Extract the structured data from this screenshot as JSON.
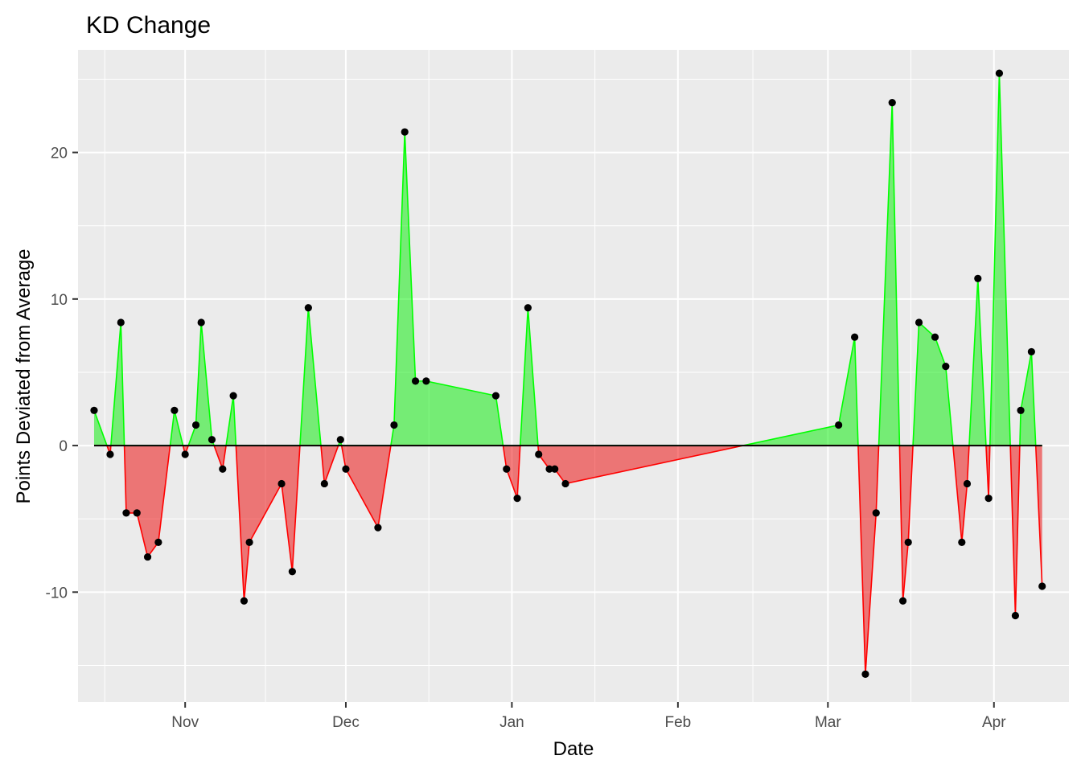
{
  "chart_data": {
    "type": "area",
    "title": "KD Change",
    "xlabel": "Date",
    "ylabel": "Points Deviated from Average",
    "x_axis": {
      "type": "date",
      "range": [
        "2021-10-12",
        "2022-04-15"
      ],
      "tick_labels": [
        {
          "date": "2021-11-01",
          "label": "Nov"
        },
        {
          "date": "2021-12-01",
          "label": "Dec"
        },
        {
          "date": "2022-01-01",
          "label": "Jan"
        },
        {
          "date": "2022-02-01",
          "label": "Feb"
        },
        {
          "date": "2022-03-01",
          "label": "Mar"
        },
        {
          "date": "2022-04-01",
          "label": "Apr"
        }
      ]
    },
    "y_axis": {
      "range": [
        -17.5,
        27.0
      ],
      "ticks": [
        -10,
        0,
        10,
        20
      ],
      "minor_ticks": [
        -15,
        -5,
        5,
        15,
        25
      ]
    },
    "grid": true,
    "legend": "none",
    "colors": {
      "positive_fill": "#00ee00",
      "positive_line": "#00ff00",
      "negative_fill": "#ee0000",
      "negative_line": "#ff0000",
      "points": "#000000",
      "baseline": "#000000",
      "panel": "#ebebeb",
      "grid": "#ffffff"
    },
    "points": [
      {
        "date": "2021-10-15",
        "y": 2.4
      },
      {
        "date": "2021-10-18",
        "y": -0.6
      },
      {
        "date": "2021-10-20",
        "y": 8.4
      },
      {
        "date": "2021-10-21",
        "y": -4.6
      },
      {
        "date": "2021-10-23",
        "y": -4.6
      },
      {
        "date": "2021-10-25",
        "y": -7.6
      },
      {
        "date": "2021-10-27",
        "y": -6.6
      },
      {
        "date": "2021-10-30",
        "y": 2.4
      },
      {
        "date": "2021-11-01",
        "y": -0.6
      },
      {
        "date": "2021-11-03",
        "y": 1.4
      },
      {
        "date": "2021-11-04",
        "y": 8.4
      },
      {
        "date": "2021-11-06",
        "y": 0.4
      },
      {
        "date": "2021-11-08",
        "y": -1.6
      },
      {
        "date": "2021-11-10",
        "y": 3.4
      },
      {
        "date": "2021-11-12",
        "y": -10.6
      },
      {
        "date": "2021-11-13",
        "y": -6.6
      },
      {
        "date": "2021-11-19",
        "y": -2.6
      },
      {
        "date": "2021-11-21",
        "y": -8.6
      },
      {
        "date": "2021-11-24",
        "y": 9.4
      },
      {
        "date": "2021-11-27",
        "y": -2.6
      },
      {
        "date": "2021-11-30",
        "y": 0.4
      },
      {
        "date": "2021-12-01",
        "y": -1.6
      },
      {
        "date": "2021-12-07",
        "y": -5.6
      },
      {
        "date": "2021-12-10",
        "y": 1.4
      },
      {
        "date": "2021-12-12",
        "y": 21.4
      },
      {
        "date": "2021-12-14",
        "y": 4.4
      },
      {
        "date": "2021-12-16",
        "y": 4.4
      },
      {
        "date": "2021-12-29",
        "y": 3.4
      },
      {
        "date": "2021-12-31",
        "y": -1.6
      },
      {
        "date": "2022-01-02",
        "y": -3.6
      },
      {
        "date": "2022-01-04",
        "y": 9.4
      },
      {
        "date": "2022-01-06",
        "y": -0.6
      },
      {
        "date": "2022-01-08",
        "y": -1.6
      },
      {
        "date": "2022-01-09",
        "y": -1.6
      },
      {
        "date": "2022-01-11",
        "y": -2.6
      },
      {
        "date": "2022-03-03",
        "y": 1.4
      },
      {
        "date": "2022-03-06",
        "y": 7.4
      },
      {
        "date": "2022-03-08",
        "y": -15.6
      },
      {
        "date": "2022-03-10",
        "y": -4.6
      },
      {
        "date": "2022-03-13",
        "y": 23.4
      },
      {
        "date": "2022-03-15",
        "y": -10.6
      },
      {
        "date": "2022-03-16",
        "y": -6.6
      },
      {
        "date": "2022-03-18",
        "y": 8.4
      },
      {
        "date": "2022-03-21",
        "y": 7.4
      },
      {
        "date": "2022-03-23",
        "y": 5.4
      },
      {
        "date": "2022-03-26",
        "y": -6.6
      },
      {
        "date": "2022-03-27",
        "y": -2.6
      },
      {
        "date": "2022-03-29",
        "y": 11.4
      },
      {
        "date": "2022-03-31",
        "y": -3.6
      },
      {
        "date": "2022-04-02",
        "y": 25.4
      },
      {
        "date": "2022-04-05",
        "y": -11.6
      },
      {
        "date": "2022-04-06",
        "y": 2.4
      },
      {
        "date": "2022-04-08",
        "y": 6.4
      },
      {
        "date": "2022-04-10",
        "y": -9.6
      }
    ]
  }
}
